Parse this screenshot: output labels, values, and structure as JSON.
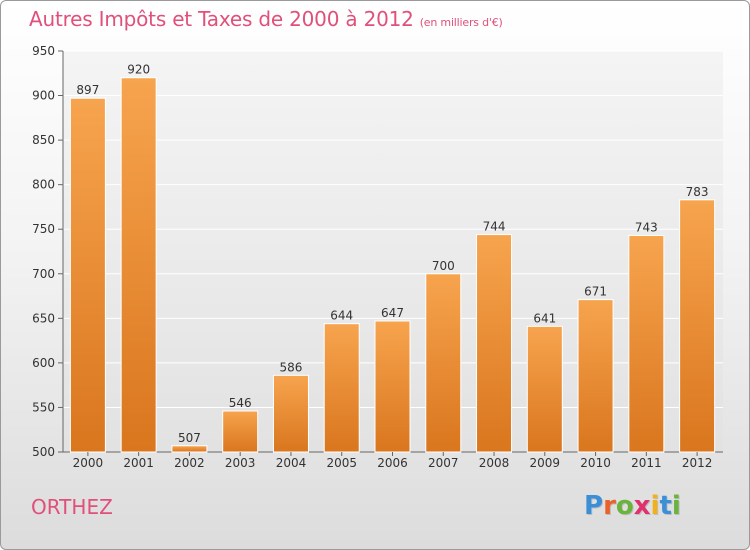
{
  "title": "Autres Impôts et Taxes de 2000 à 2012",
  "subtitle": "(en milliers d'€)",
  "city": "ORTHEZ",
  "logo": {
    "text": "Proxiti",
    "letters": [
      "P",
      "r",
      "o",
      "x",
      "i",
      "t",
      "i"
    ],
    "colors": [
      "#3a8fd6",
      "#e8622a",
      "#6ab33c",
      "#e0306e",
      "#f2b01e",
      "#3a8fd6",
      "#6ab33c"
    ]
  },
  "colors": {
    "bar_top": "#f7a44e",
    "bar_bottom": "#d9761e",
    "title": "#e0507a"
  },
  "chart_data": {
    "type": "bar",
    "title": "Autres Impôts et Taxes de 2000 à 2012",
    "subtitle": "(en milliers d'€)",
    "categories": [
      "2000",
      "2001",
      "2002",
      "2003",
      "2004",
      "2005",
      "2006",
      "2007",
      "2008",
      "2009",
      "2010",
      "2011",
      "2012"
    ],
    "values": [
      897,
      920,
      507,
      546,
      586,
      644,
      647,
      700,
      744,
      641,
      671,
      743,
      783
    ],
    "ylim": [
      500,
      950
    ],
    "yticks": [
      500,
      550,
      600,
      650,
      700,
      750,
      800,
      850,
      900,
      950
    ],
    "grid": true,
    "xlabel": "",
    "ylabel": ""
  }
}
